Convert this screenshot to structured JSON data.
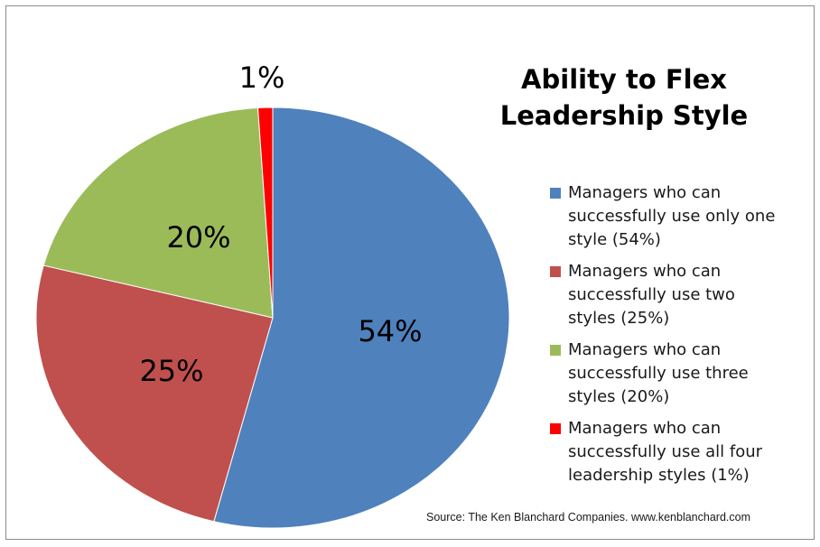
{
  "chart_data": {
    "type": "pie",
    "title_lines": [
      "Ability to Flex",
      "Leadership Style"
    ],
    "start_angle_deg": 0,
    "direction": "clockwise",
    "slices": [
      {
        "label": "Managers who can successfully use only one style (54%)",
        "value": 54,
        "data_label": "54%",
        "color": "#4f81bd"
      },
      {
        "label": "Managers who can successfully use two styles (25%)",
        "value": 25,
        "data_label": "25%",
        "color": "#c0504d"
      },
      {
        "label": "Managers who can successfully use three styles (20%)",
        "value": 20,
        "data_label": "20%",
        "color": "#9bbb59"
      },
      {
        "label": "Managers who can successfully use all four leadership styles (1%)",
        "value": 1,
        "data_label": "1%",
        "color": "#ff0000"
      }
    ],
    "legend_position": "right",
    "source": "Source: The Ken Blanchard Companies. www.kenblanchard.com"
  }
}
